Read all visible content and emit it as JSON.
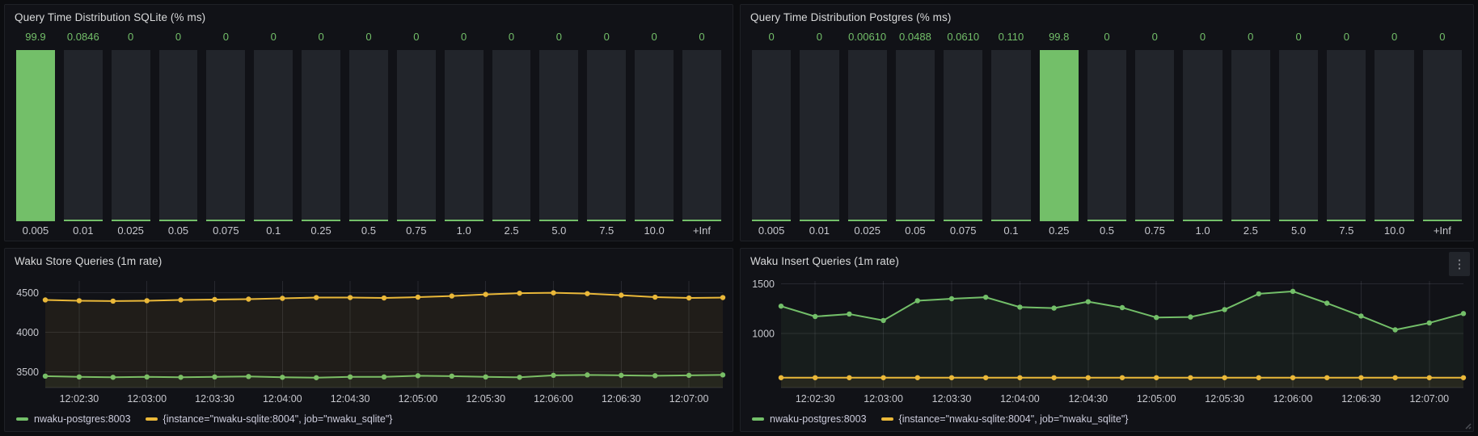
{
  "colors": {
    "green": "#73BF69",
    "yellow": "#EAB839",
    "track": "#22252B",
    "panel_bg": "#111217",
    "page_bg": "#0c0d10",
    "value_text": "#73BF69",
    "tick_text": "#C7C8CE"
  },
  "icons": {
    "kebab": "⋮"
  },
  "chart_data": [
    {
      "id": "sqlite-hist",
      "type": "bar",
      "title": "Query Time Distribution SQLite (% ms)",
      "categories": [
        "0.005",
        "0.01",
        "0.025",
        "0.05",
        "0.075",
        "0.1",
        "0.25",
        "0.5",
        "0.75",
        "1.0",
        "2.5",
        "5.0",
        "7.5",
        "10.0",
        "+Inf"
      ],
      "values": [
        99.9,
        0.0846,
        0,
        0,
        0,
        0,
        0,
        0,
        0,
        0,
        0,
        0,
        0,
        0,
        0
      ],
      "value_labels": [
        "99.9",
        "0.0846",
        "0",
        "0",
        "0",
        "0",
        "0",
        "0",
        "0",
        "0",
        "0",
        "0",
        "0",
        "0",
        "0"
      ],
      "ylim": [
        0,
        100
      ],
      "grid": false,
      "bar_color": "#73BF69",
      "track_color": "#22252B"
    },
    {
      "id": "postgres-hist",
      "type": "bar",
      "title": "Query Time Distribution Postgres (% ms)",
      "categories": [
        "0.005",
        "0.01",
        "0.025",
        "0.05",
        "0.075",
        "0.1",
        "0.25",
        "0.5",
        "0.75",
        "1.0",
        "2.5",
        "5.0",
        "7.5",
        "10.0",
        "+Inf"
      ],
      "values": [
        0,
        0,
        0.0061,
        0.0488,
        0.061,
        0.11,
        99.8,
        0,
        0,
        0,
        0,
        0,
        0,
        0,
        0
      ],
      "value_labels": [
        "0",
        "0",
        "0.00610",
        "0.0488",
        "0.0610",
        "0.110",
        "99.8",
        "0",
        "0",
        "0",
        "0",
        "0",
        "0",
        "0",
        "0"
      ],
      "ylim": [
        0,
        100
      ],
      "grid": false,
      "bar_color": "#73BF69",
      "track_color": "#22252B"
    },
    {
      "id": "store-queries",
      "type": "line",
      "title": "Waku Store Queries (1m rate)",
      "x_tick_labels": [
        "12:02:30",
        "12:03:00",
        "12:03:30",
        "12:04:00",
        "12:04:30",
        "12:05:00",
        "12:05:30",
        "12:06:00",
        "12:06:30",
        "12:07:00"
      ],
      "x_points_per_tick_note": "21 points at 15s intervals from 12:02:15 to 12:07:15",
      "y_ticks": [
        3500,
        4000,
        4500
      ],
      "ylim": [
        3300,
        4650
      ],
      "grid": true,
      "legend_position": "bottom",
      "series": [
        {
          "name": "nwaku-postgres:8003",
          "color": "#73BF69",
          "values": [
            3445,
            3435,
            3430,
            3435,
            3430,
            3435,
            3440,
            3430,
            3425,
            3435,
            3435,
            3450,
            3445,
            3435,
            3430,
            3455,
            3460,
            3455,
            3450,
            3455,
            3460
          ]
        },
        {
          "name": "{instance=\"nwaku-sqlite:8004\", job=\"nwaku_sqlite\"}",
          "color": "#EAB839",
          "values": [
            4410,
            4400,
            4395,
            4400,
            4410,
            4415,
            4420,
            4430,
            4440,
            4440,
            4435,
            4445,
            4460,
            4480,
            4495,
            4500,
            4490,
            4470,
            4445,
            4435,
            4440
          ]
        }
      ]
    },
    {
      "id": "insert-queries",
      "type": "line",
      "title": "Waku Insert Queries (1m rate)",
      "x_tick_labels": [
        "12:02:30",
        "12:03:00",
        "12:03:30",
        "12:04:00",
        "12:04:30",
        "12:05:00",
        "12:05:30",
        "12:06:00",
        "12:06:30",
        "12:07:00"
      ],
      "x_points_per_tick_note": "21 points at 15s intervals from 12:02:15 to 12:07:15",
      "y_ticks": [
        1000,
        1500
      ],
      "ylim": [
        450,
        1530
      ],
      "grid": true,
      "legend_position": "bottom",
      "series": [
        {
          "name": "nwaku-postgres:8003",
          "color": "#73BF69",
          "values": [
            1275,
            1170,
            1195,
            1130,
            1330,
            1350,
            1365,
            1265,
            1255,
            1320,
            1260,
            1160,
            1165,
            1240,
            1400,
            1425,
            1305,
            1175,
            1035,
            1105,
            1200
          ]
        },
        {
          "name": "{instance=\"nwaku-sqlite:8004\", job=\"nwaku_sqlite\"}",
          "color": "#EAB839",
          "values": [
            550,
            550,
            550,
            550,
            550,
            550,
            550,
            550,
            550,
            550,
            550,
            550,
            550,
            550,
            550,
            550,
            550,
            550,
            550,
            550,
            550
          ]
        }
      ]
    }
  ]
}
